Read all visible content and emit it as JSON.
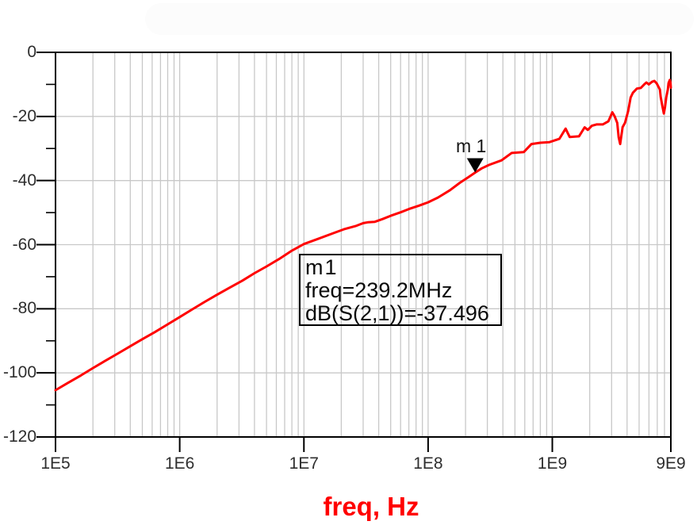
{
  "axes": {
    "x": {
      "label": "freq, Hz",
      "scale": "log",
      "ticks": [
        {
          "label": "1E5",
          "value": 100000.0
        },
        {
          "label": "1E6",
          "value": 1000000.0
        },
        {
          "label": "1E7",
          "value": 10000000.0
        },
        {
          "label": "1E8",
          "value": 100000000.0
        },
        {
          "label": "1E9",
          "value": 1000000000.0
        },
        {
          "label": "9E9",
          "value": 9000000000.0
        }
      ]
    },
    "y": {
      "unit": "dB",
      "minor_step": 10,
      "ticks": [
        {
          "label": "0",
          "value": 0
        },
        {
          "label": "-20",
          "value": -20
        },
        {
          "label": "-40",
          "value": -40
        },
        {
          "label": "-60",
          "value": -60
        },
        {
          "label": "-80",
          "value": -80
        },
        {
          "label": "-100",
          "value": -100
        },
        {
          "label": "-120",
          "value": -120
        }
      ]
    }
  },
  "marker": {
    "name": "m1",
    "flag_label": "m 1",
    "freq_hz": 239200000.0,
    "freq_label": "239.2MHz",
    "value_db": -37.496,
    "box_lines": [
      "m1",
      "freq=239.2MHz",
      "dB(S(2,1))=-37.496"
    ]
  },
  "colors": {
    "trace": "#ff0000",
    "grid": "#c8c8c8",
    "axis": "#000000",
    "tick_text": "#2e2e2e",
    "marker_fill": "#000000",
    "x_label": "#ff0000"
  },
  "chart_data": {
    "type": "line",
    "xscale": "log",
    "xlim": [
      100000.0,
      9000000000.0
    ],
    "ylim": [
      -120,
      0
    ],
    "xlabel": "freq, Hz",
    "ylabel": "dB(S(2,1))",
    "grid": true,
    "legend": "none",
    "marker": {
      "name": "m1",
      "freq_hz": 239200000.0,
      "value_db": -37.496
    },
    "series": [
      {
        "name": "dB(S(2,1))",
        "color": "#ff0000",
        "points": [
          [
            100000.0,
            -105.4
          ],
          [
            125000.0,
            -103.2
          ],
          [
            160000.0,
            -100.8
          ],
          [
            200000.0,
            -98.5
          ],
          [
            250000.0,
            -96.3
          ],
          [
            320000.0,
            -93.9
          ],
          [
            400000.0,
            -91.7
          ],
          [
            500000.0,
            -89.5
          ],
          [
            630000.0,
            -87.3
          ],
          [
            790000.0,
            -85.0
          ],
          [
            1000000.0,
            -82.6
          ],
          [
            1260000.0,
            -80.2
          ],
          [
            1600000.0,
            -77.8
          ],
          [
            2000000.0,
            -75.6
          ],
          [
            2500000.0,
            -73.5
          ],
          [
            3200000.0,
            -71.2
          ],
          [
            4000000.0,
            -68.9
          ],
          [
            5000000.0,
            -66.8
          ],
          [
            6300000.0,
            -64.5
          ],
          [
            7900000.0,
            -62.0
          ],
          [
            10000000.0,
            -59.8
          ],
          [
            13000000.0,
            -58.2
          ],
          [
            17000000.0,
            -56.5
          ],
          [
            21000000.0,
            -55.2
          ],
          [
            26000000.0,
            -54.2
          ],
          [
            30000000.0,
            -53.3
          ],
          [
            33000000.0,
            -53.0
          ],
          [
            37000000.0,
            -52.9
          ],
          [
            43000000.0,
            -52.0
          ],
          [
            50000000.0,
            -51.0
          ],
          [
            60000000.0,
            -49.9
          ],
          [
            70000000.0,
            -48.9
          ],
          [
            85000000.0,
            -47.8
          ],
          [
            100000000.0,
            -46.8
          ],
          [
            120000000.0,
            -45.3
          ],
          [
            150000000.0,
            -43.0
          ],
          [
            180000000.0,
            -40.7
          ],
          [
            210000000.0,
            -39.0
          ],
          [
            239200000.0,
            -37.5
          ],
          [
            270000000.0,
            -36.2
          ],
          [
            310000000.0,
            -35.1
          ],
          [
            390000000.0,
            -33.7
          ],
          [
            470000000.0,
            -31.4
          ],
          [
            590000000.0,
            -31.1
          ],
          [
            680000000.0,
            -28.6
          ],
          [
            800000000.0,
            -28.2
          ],
          [
            950000000.0,
            -28.0
          ],
          [
            1140000000.0,
            -27.0
          ],
          [
            1280000000.0,
            -23.8
          ],
          [
            1380000000.0,
            -26.4
          ],
          [
            1640000000.0,
            -26.2
          ],
          [
            1820000000.0,
            -23.4
          ],
          [
            1930000000.0,
            -24.2
          ],
          [
            2080000000.0,
            -22.9
          ],
          [
            2270000000.0,
            -22.5
          ],
          [
            2550000000.0,
            -22.5
          ],
          [
            2830000000.0,
            -21.5
          ],
          [
            3040000000.0,
            -18.7
          ],
          [
            3180000000.0,
            -20.0
          ],
          [
            3330000000.0,
            -22.0
          ],
          [
            3420000000.0,
            -26.5
          ],
          [
            3520000000.0,
            -28.6
          ],
          [
            3680000000.0,
            -23.3
          ],
          [
            3850000000.0,
            -22.0
          ],
          [
            4080000000.0,
            -18.3
          ],
          [
            4270000000.0,
            -14.1
          ],
          [
            4460000000.0,
            -12.6
          ],
          [
            4800000000.0,
            -11.3
          ],
          [
            5160000000.0,
            -11.1
          ],
          [
            5470000000.0,
            -10.1
          ],
          [
            5720000000.0,
            -9.4
          ],
          [
            5980000000.0,
            -10.0
          ],
          [
            6340000000.0,
            -9.2
          ],
          [
            6630000000.0,
            -8.9
          ],
          [
            6930000000.0,
            -9.7
          ],
          [
            7350000000.0,
            -11.6
          ],
          [
            7460000000.0,
            -13.9
          ],
          [
            7680000000.0,
            -16.6
          ],
          [
            7910000000.0,
            -19.1
          ],
          [
            8090000000.0,
            -17.0
          ],
          [
            8260000000.0,
            -14.1
          ],
          [
            8510000000.0,
            -11.6
          ],
          [
            8630000000.0,
            -9.6
          ],
          [
            8830000000.0,
            -8.6
          ],
          [
            8950000000.0,
            -9.5
          ],
          [
            9000000000.0,
            -11.0
          ]
        ]
      }
    ]
  }
}
